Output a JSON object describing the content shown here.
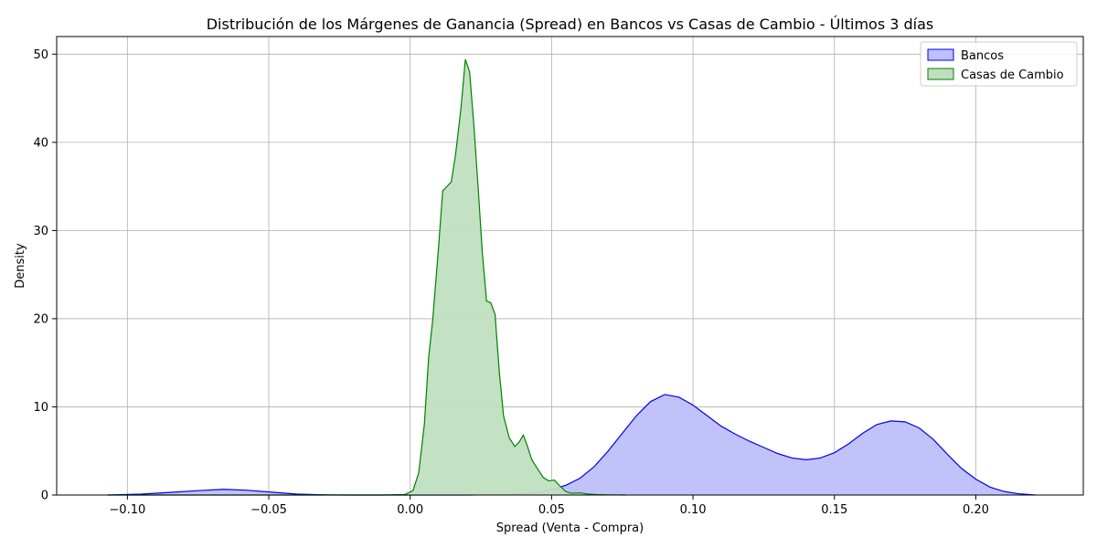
{
  "chart_data": {
    "type": "area",
    "title": "Distribución de los Márgenes de Ganancia (Spread) en Bancos vs Casas de Cambio - Últimos 3 días",
    "xlabel": "Spread (Venta - Compra)",
    "ylabel": "Density",
    "xlim": [
      -0.125,
      0.238
    ],
    "ylim": [
      0,
      52
    ],
    "x_ticks": [
      -0.1,
      -0.05,
      0.0,
      0.05,
      0.1,
      0.15,
      0.2
    ],
    "x_tick_labels": [
      "−0.10",
      "−0.05",
      "0.00",
      "0.05",
      "0.10",
      "0.15",
      "0.20"
    ],
    "y_ticks": [
      0,
      10,
      20,
      30,
      40,
      50
    ],
    "y_tick_labels": [
      "0",
      "10",
      "20",
      "30",
      "40",
      "50"
    ],
    "grid": true,
    "legend_position": "top-right",
    "series": [
      {
        "name": "Bancos",
        "line_color": "#0000ee",
        "fill_color": "#bfbffb",
        "points": [
          [
            -0.107,
            0
          ],
          [
            -0.095,
            0.1
          ],
          [
            -0.085,
            0.3
          ],
          [
            -0.075,
            0.5
          ],
          [
            -0.066,
            0.65
          ],
          [
            -0.058,
            0.55
          ],
          [
            -0.05,
            0.35
          ],
          [
            -0.04,
            0.1
          ],
          [
            -0.03,
            0.02
          ],
          [
            -0.02,
            0
          ],
          [
            0.0,
            0
          ],
          [
            0.02,
            0
          ],
          [
            0.035,
            0.05
          ],
          [
            0.045,
            0.3
          ],
          [
            0.05,
            0.6
          ],
          [
            0.055,
            1.1
          ],
          [
            0.06,
            1.9
          ],
          [
            0.065,
            3.2
          ],
          [
            0.07,
            5.0
          ],
          [
            0.075,
            7.0
          ],
          [
            0.08,
            9.0
          ],
          [
            0.085,
            10.6
          ],
          [
            0.09,
            11.4
          ],
          [
            0.095,
            11.1
          ],
          [
            0.1,
            10.2
          ],
          [
            0.105,
            9.0
          ],
          [
            0.11,
            7.8
          ],
          [
            0.115,
            6.9
          ],
          [
            0.12,
            6.1
          ],
          [
            0.125,
            5.4
          ],
          [
            0.13,
            4.7
          ],
          [
            0.135,
            4.2
          ],
          [
            0.14,
            4.0
          ],
          [
            0.145,
            4.2
          ],
          [
            0.15,
            4.8
          ],
          [
            0.155,
            5.8
          ],
          [
            0.16,
            7.0
          ],
          [
            0.165,
            8.0
          ],
          [
            0.17,
            8.4
          ],
          [
            0.175,
            8.3
          ],
          [
            0.18,
            7.6
          ],
          [
            0.185,
            6.3
          ],
          [
            0.19,
            4.6
          ],
          [
            0.195,
            3.0
          ],
          [
            0.2,
            1.8
          ],
          [
            0.205,
            0.9
          ],
          [
            0.21,
            0.4
          ],
          [
            0.215,
            0.15
          ],
          [
            0.221,
            0
          ]
        ]
      },
      {
        "name": "Casas de Cambio",
        "line_color": "#008000",
        "fill_color": "#c0dfc0",
        "points": [
          [
            -0.107,
            0
          ],
          [
            -0.05,
            0
          ],
          [
            -0.01,
            0
          ],
          [
            -0.002,
            0.05
          ],
          [
            0.001,
            0.5
          ],
          [
            0.003,
            2.5
          ],
          [
            0.005,
            8.0
          ],
          [
            0.0065,
            15.5
          ],
          [
            0.008,
            20.0
          ],
          [
            0.01,
            28.0
          ],
          [
            0.0115,
            34.5
          ],
          [
            0.013,
            35.0
          ],
          [
            0.0145,
            35.5
          ],
          [
            0.016,
            38.5
          ],
          [
            0.018,
            44.0
          ],
          [
            0.0195,
            49.4
          ],
          [
            0.021,
            48.0
          ],
          [
            0.0225,
            42.0
          ],
          [
            0.024,
            35.0
          ],
          [
            0.0255,
            27.5
          ],
          [
            0.027,
            22.0
          ],
          [
            0.0285,
            21.8
          ],
          [
            0.03,
            20.5
          ],
          [
            0.0315,
            14.0
          ],
          [
            0.033,
            9.0
          ],
          [
            0.035,
            6.5
          ],
          [
            0.037,
            5.5
          ],
          [
            0.0385,
            6.0
          ],
          [
            0.04,
            6.8
          ],
          [
            0.0415,
            5.5
          ],
          [
            0.043,
            4.0
          ],
          [
            0.045,
            3.0
          ],
          [
            0.047,
            2.0
          ],
          [
            0.049,
            1.6
          ],
          [
            0.051,
            1.7
          ],
          [
            0.053,
            1.0
          ],
          [
            0.055,
            0.4
          ],
          [
            0.057,
            0.2
          ],
          [
            0.06,
            0.25
          ],
          [
            0.063,
            0.1
          ],
          [
            0.066,
            0.05
          ],
          [
            0.07,
            0.02
          ],
          [
            0.076,
            0
          ]
        ]
      }
    ]
  }
}
